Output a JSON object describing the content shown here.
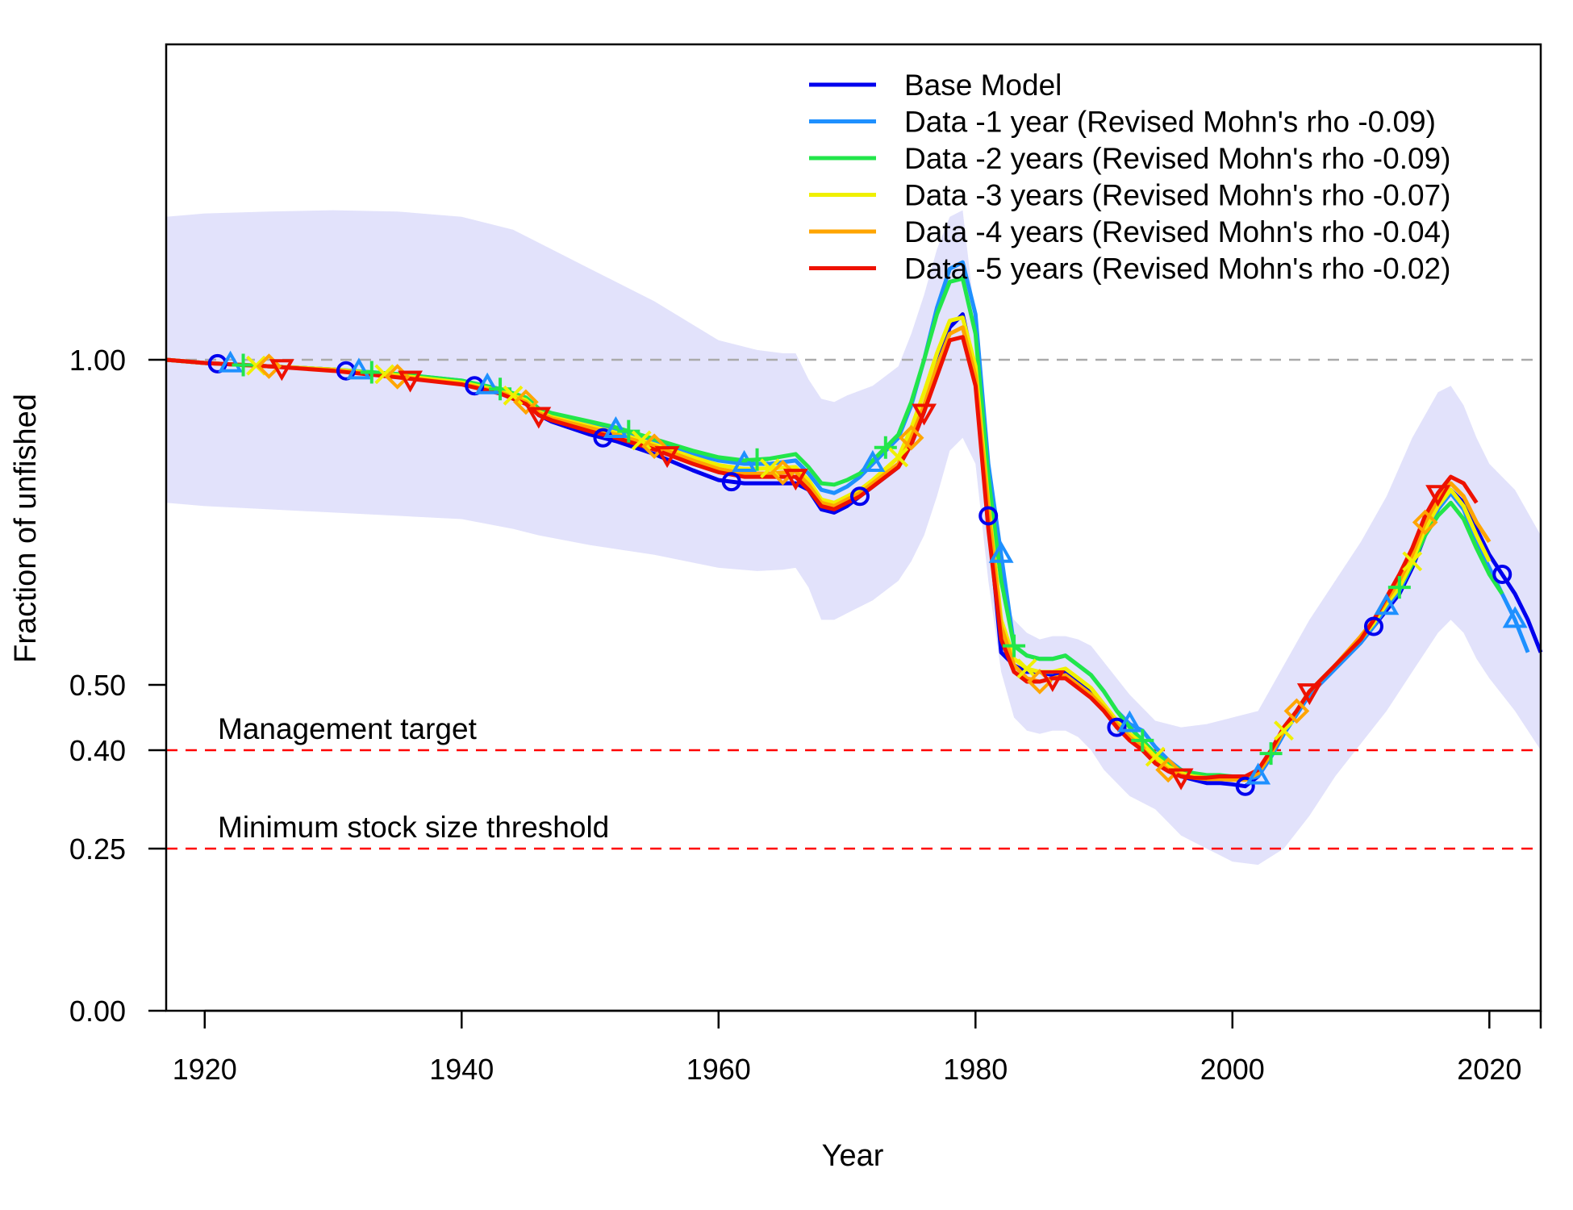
{
  "chart_data": {
    "type": "line",
    "xlabel": "Year",
    "ylabel": "Fraction of unfished",
    "xlim": [
      1917,
      2024
    ],
    "ylim": [
      0,
      1.55
    ],
    "x_ticks": [
      1920,
      1940,
      1960,
      1980,
      2000,
      2020
    ],
    "x_tick_labels": [
      "1920",
      "1940",
      "1960",
      "1980",
      "2000",
      "2020"
    ],
    "y_ticks": [
      0,
      0.25,
      0.4,
      0.5,
      1.0
    ],
    "y_tick_labels": [
      "0.00",
      "0.25",
      "0.40",
      "0.50",
      "1.00"
    ],
    "grid": false,
    "legend_position": "top-right",
    "reference_lines": [
      {
        "y": 1.0,
        "color": "#aaaaaa",
        "style": "dashed",
        "label": ""
      },
      {
        "y": 0.4,
        "color": "#ff0000",
        "style": "dashed",
        "label": "Management target"
      },
      {
        "y": 0.25,
        "color": "#ff0000",
        "style": "dashed",
        "label": "Minimum stock size threshold"
      }
    ],
    "uncertainty_band": {
      "color": "#e2e2fb",
      "x": [
        1917,
        1920,
        1925,
        1930,
        1935,
        1940,
        1944,
        1946,
        1950,
        1955,
        1960,
        1963,
        1965,
        1966,
        1967,
        1968,
        1969,
        1970,
        1972,
        1974,
        1975,
        1976,
        1977,
        1978,
        1979,
        1980,
        1981,
        1982,
        1983,
        1984,
        1985,
        1986,
        1987,
        1988,
        1989,
        1990,
        1992,
        1994,
        1996,
        1998,
        2000,
        2002,
        2004,
        2006,
        2008,
        2010,
        2012,
        2014,
        2016,
        2017,
        2018,
        2019,
        2020,
        2022,
        2024
      ],
      "upper": [
        1.22,
        1.225,
        1.228,
        1.23,
        1.228,
        1.22,
        1.2,
        1.18,
        1.14,
        1.09,
        1.03,
        1.015,
        1.01,
        1.01,
        0.97,
        0.94,
        0.935,
        0.945,
        0.96,
        0.99,
        1.04,
        1.1,
        1.17,
        1.22,
        1.23,
        1.06,
        0.78,
        0.64,
        0.6,
        0.58,
        0.57,
        0.575,
        0.575,
        0.57,
        0.56,
        0.535,
        0.485,
        0.445,
        0.435,
        0.44,
        0.45,
        0.46,
        0.53,
        0.6,
        0.66,
        0.72,
        0.79,
        0.88,
        0.95,
        0.96,
        0.93,
        0.88,
        0.84,
        0.8,
        0.73
      ],
      "lower": [
        0.78,
        0.775,
        0.77,
        0.765,
        0.76,
        0.755,
        0.74,
        0.73,
        0.715,
        0.7,
        0.68,
        0.675,
        0.677,
        0.68,
        0.65,
        0.6,
        0.6,
        0.61,
        0.63,
        0.66,
        0.69,
        0.73,
        0.79,
        0.86,
        0.88,
        0.84,
        0.66,
        0.52,
        0.45,
        0.43,
        0.425,
        0.43,
        0.43,
        0.42,
        0.4,
        0.37,
        0.33,
        0.31,
        0.27,
        0.25,
        0.23,
        0.225,
        0.25,
        0.3,
        0.36,
        0.41,
        0.46,
        0.52,
        0.58,
        0.6,
        0.58,
        0.54,
        0.51,
        0.46,
        0.4
      ]
    },
    "series": [
      {
        "name": "Base Model",
        "color": "#0000ee",
        "marker": "circle",
        "marker_years": [
          1921,
          1931,
          1941,
          1951,
          1961,
          1971,
          1981,
          1991,
          2001,
          2011,
          2021
        ],
        "x": [
          1917,
          1920,
          1925,
          1930,
          1935,
          1940,
          1943,
          1945,
          1946,
          1947,
          1950,
          1952,
          1955,
          1958,
          1960,
          1962,
          1964,
          1966,
          1967,
          1968,
          1969,
          1970,
          1971,
          1972,
          1974,
          1975,
          1976,
          1977,
          1978,
          1979,
          1980,
          1981,
          1982,
          1983,
          1984,
          1985,
          1986,
          1987,
          1988,
          1989,
          1990,
          1991,
          1992,
          1993,
          1994,
          1995,
          1996,
          1997,
          1998,
          1999,
          2000,
          2001,
          2002,
          2003,
          2004,
          2005,
          2006,
          2007,
          2008,
          2010,
          2011,
          2012,
          2013,
          2014,
          2015,
          2016,
          2017,
          2018,
          2019,
          2020,
          2021,
          2022,
          2023,
          2024
        ],
        "y": [
          1.0,
          0.995,
          0.99,
          0.985,
          0.975,
          0.965,
          0.95,
          0.935,
          0.915,
          0.905,
          0.885,
          0.875,
          0.855,
          0.83,
          0.815,
          0.81,
          0.81,
          0.81,
          0.8,
          0.77,
          0.765,
          0.775,
          0.79,
          0.805,
          0.835,
          0.87,
          0.92,
          0.99,
          1.05,
          1.07,
          0.98,
          0.76,
          0.55,
          0.53,
          0.52,
          0.52,
          0.515,
          0.52,
          0.505,
          0.49,
          0.465,
          0.435,
          0.42,
          0.41,
          0.39,
          0.375,
          0.36,
          0.355,
          0.35,
          0.35,
          0.348,
          0.345,
          0.36,
          0.39,
          0.425,
          0.455,
          0.485,
          0.505,
          0.525,
          0.565,
          0.59,
          0.615,
          0.64,
          0.68,
          0.73,
          0.77,
          0.8,
          0.78,
          0.74,
          0.7,
          0.67,
          0.64,
          0.6,
          0.55
        ]
      },
      {
        "name": "Data -1 year (Revised Mohn's rho -0.09)",
        "color": "#1e90ff",
        "marker": "triangle-up",
        "marker_years": [
          1922,
          1932,
          1942,
          1952,
          1962,
          1972,
          1982,
          1992,
          2002,
          2012,
          2022
        ],
        "x": [
          1917,
          1920,
          1925,
          1930,
          1935,
          1940,
          1943,
          1945,
          1946,
          1947,
          1950,
          1952,
          1955,
          1958,
          1960,
          1962,
          1964,
          1966,
          1967,
          1968,
          1969,
          1970,
          1971,
          1972,
          1974,
          1975,
          1976,
          1977,
          1978,
          1979,
          1980,
          1981,
          1982,
          1983,
          1984,
          1985,
          1986,
          1987,
          1988,
          1989,
          1990,
          1991,
          1992,
          1993,
          1994,
          1995,
          1996,
          1997,
          1998,
          1999,
          2000,
          2001,
          2002,
          2003,
          2004,
          2005,
          2006,
          2007,
          2008,
          2010,
          2011,
          2012,
          2013,
          2014,
          2015,
          2016,
          2017,
          2018,
          2019,
          2020,
          2021,
          2022,
          2023
        ],
        "y": [
          1.0,
          0.995,
          0.99,
          0.985,
          0.978,
          0.968,
          0.955,
          0.94,
          0.923,
          0.915,
          0.9,
          0.892,
          0.873,
          0.855,
          0.845,
          0.84,
          0.84,
          0.845,
          0.825,
          0.8,
          0.795,
          0.805,
          0.82,
          0.84,
          0.88,
          0.93,
          1.0,
          1.08,
          1.14,
          1.15,
          1.07,
          0.84,
          0.7,
          0.56,
          0.545,
          0.54,
          0.54,
          0.545,
          0.53,
          0.515,
          0.49,
          0.46,
          0.44,
          0.43,
          0.405,
          0.385,
          0.37,
          0.365,
          0.36,
          0.36,
          0.358,
          0.355,
          0.36,
          0.39,
          0.425,
          0.455,
          0.485,
          0.505,
          0.525,
          0.565,
          0.59,
          0.62,
          0.645,
          0.685,
          0.735,
          0.77,
          0.795,
          0.77,
          0.72,
          0.68,
          0.64,
          0.6,
          0.55
        ]
      },
      {
        "name": "Data -2 years (Revised Mohn's rho -0.09)",
        "color": "#22e64a",
        "marker": "plus",
        "marker_years": [
          1923,
          1933,
          1943,
          1953,
          1963,
          1973,
          1983,
          1993,
          2003,
          2013
        ],
        "x": [
          1917,
          1920,
          1925,
          1930,
          1935,
          1940,
          1943,
          1945,
          1946,
          1947,
          1950,
          1952,
          1955,
          1958,
          1960,
          1962,
          1964,
          1966,
          1967,
          1968,
          1969,
          1970,
          1971,
          1972,
          1974,
          1975,
          1976,
          1977,
          1978,
          1979,
          1980,
          1981,
          1982,
          1983,
          1984,
          1985,
          1986,
          1987,
          1988,
          1989,
          1990,
          1991,
          1992,
          1993,
          1994,
          1995,
          1996,
          1997,
          1998,
          1999,
          2000,
          2001,
          2002,
          2003,
          2004,
          2005,
          2006,
          2007,
          2008,
          2010,
          2011,
          2012,
          2013,
          2014,
          2015,
          2016,
          2017,
          2018,
          2019,
          2020,
          2021
        ],
        "y": [
          1.0,
          0.995,
          0.99,
          0.985,
          0.978,
          0.968,
          0.955,
          0.942,
          0.925,
          0.918,
          0.905,
          0.896,
          0.878,
          0.86,
          0.85,
          0.845,
          0.848,
          0.855,
          0.835,
          0.81,
          0.808,
          0.815,
          0.825,
          0.845,
          0.885,
          0.935,
          1.0,
          1.07,
          1.12,
          1.125,
          1.04,
          0.82,
          0.66,
          0.56,
          0.545,
          0.54,
          0.54,
          0.545,
          0.53,
          0.515,
          0.49,
          0.46,
          0.435,
          0.415,
          0.395,
          0.38,
          0.37,
          0.365,
          0.362,
          0.362,
          0.36,
          0.358,
          0.365,
          0.395,
          0.43,
          0.46,
          0.49,
          0.51,
          0.53,
          0.57,
          0.595,
          0.625,
          0.65,
          0.685,
          0.73,
          0.76,
          0.78,
          0.755,
          0.71,
          0.67,
          0.64
        ]
      },
      {
        "name": "Data -3 years (Revised Mohn's rho -0.07)",
        "color": "#f0f000",
        "marker": "cross",
        "marker_years": [
          1924,
          1934,
          1944,
          1954,
          1964,
          1974,
          1984,
          1994,
          2004,
          2014
        ],
        "x": [
          1917,
          1920,
          1925,
          1930,
          1935,
          1940,
          1943,
          1945,
          1946,
          1947,
          1950,
          1952,
          1955,
          1958,
          1960,
          1962,
          1964,
          1966,
          1967,
          1968,
          1969,
          1970,
          1971,
          1972,
          1974,
          1975,
          1976,
          1977,
          1978,
          1979,
          1980,
          1981,
          1982,
          1983,
          1984,
          1985,
          1986,
          1987,
          1988,
          1989,
          1990,
          1991,
          1992,
          1993,
          1994,
          1995,
          1996,
          1997,
          1998,
          1999,
          2000,
          2001,
          2002,
          2003,
          2004,
          2005,
          2006,
          2007,
          2008,
          2010,
          2011,
          2012,
          2013,
          2014,
          2015,
          2016,
          2017,
          2018,
          2019,
          2020
        ],
        "y": [
          1.0,
          0.995,
          0.99,
          0.985,
          0.976,
          0.965,
          0.952,
          0.938,
          0.92,
          0.912,
          0.898,
          0.888,
          0.87,
          0.85,
          0.838,
          0.832,
          0.833,
          0.835,
          0.815,
          0.785,
          0.78,
          0.79,
          0.8,
          0.815,
          0.85,
          0.895,
          0.95,
          1.01,
          1.06,
          1.065,
          0.99,
          0.78,
          0.6,
          0.54,
          0.525,
          0.52,
          0.52,
          0.525,
          0.51,
          0.495,
          0.47,
          0.445,
          0.425,
          0.41,
          0.39,
          0.375,
          0.365,
          0.36,
          0.358,
          0.358,
          0.357,
          0.355,
          0.365,
          0.395,
          0.43,
          0.46,
          0.49,
          0.51,
          0.53,
          0.57,
          0.595,
          0.625,
          0.65,
          0.69,
          0.74,
          0.775,
          0.8,
          0.775,
          0.73,
          0.69
        ]
      },
      {
        "name": "Data -4 years (Revised Mohn's rho -0.04)",
        "color": "#ffa500",
        "marker": "diamond",
        "marker_years": [
          1925,
          1935,
          1945,
          1955,
          1965,
          1975,
          1985,
          1995,
          2005,
          2015
        ],
        "x": [
          1917,
          1920,
          1925,
          1930,
          1935,
          1940,
          1943,
          1945,
          1946,
          1947,
          1950,
          1952,
          1955,
          1958,
          1960,
          1962,
          1964,
          1966,
          1967,
          1968,
          1969,
          1970,
          1971,
          1972,
          1974,
          1975,
          1976,
          1977,
          1978,
          1979,
          1980,
          1981,
          1982,
          1983,
          1984,
          1985,
          1986,
          1987,
          1988,
          1989,
          1990,
          1991,
          1992,
          1993,
          1994,
          1995,
          1996,
          1997,
          1998,
          1999,
          2000,
          2001,
          2002,
          2003,
          2004,
          2005,
          2006,
          2007,
          2008,
          2010,
          2011,
          2012,
          2013,
          2014,
          2015,
          2016,
          2017,
          2018,
          2019,
          2020
        ],
        "y": [
          1.0,
          0.995,
          0.99,
          0.984,
          0.974,
          0.963,
          0.95,
          0.935,
          0.918,
          0.91,
          0.895,
          0.885,
          0.867,
          0.845,
          0.832,
          0.825,
          0.825,
          0.828,
          0.808,
          0.78,
          0.775,
          0.785,
          0.795,
          0.81,
          0.84,
          0.88,
          0.93,
          0.99,
          1.04,
          1.05,
          0.975,
          0.77,
          0.59,
          0.53,
          0.51,
          0.505,
          0.51,
          0.515,
          0.5,
          0.485,
          0.465,
          0.44,
          0.42,
          0.405,
          0.385,
          0.37,
          0.362,
          0.358,
          0.356,
          0.356,
          0.355,
          0.355,
          0.365,
          0.395,
          0.43,
          0.46,
          0.49,
          0.51,
          0.53,
          0.575,
          0.6,
          0.63,
          0.66,
          0.7,
          0.75,
          0.785,
          0.81,
          0.79,
          0.75,
          0.72
        ]
      },
      {
        "name": "Data -5 years (Revised Mohn's rho -0.02)",
        "color": "#ee1100",
        "marker": "triangle-down",
        "marker_years": [
          1926,
          1936,
          1946,
          1956,
          1966,
          1976,
          1986,
          1996,
          2006,
          2016
        ],
        "x": [
          1917,
          1920,
          1925,
          1930,
          1935,
          1940,
          1943,
          1945,
          1946,
          1947,
          1950,
          1952,
          1955,
          1958,
          1960,
          1962,
          1964,
          1966,
          1967,
          1968,
          1969,
          1970,
          1971,
          1972,
          1974,
          1975,
          1976,
          1977,
          1978,
          1979,
          1980,
          1981,
          1982,
          1983,
          1984,
          1985,
          1986,
          1987,
          1988,
          1989,
          1990,
          1991,
          1992,
          1993,
          1994,
          1995,
          1996,
          1997,
          1998,
          1999,
          2000,
          2001,
          2002,
          2003,
          2004,
          2005,
          2006,
          2007,
          2008,
          2010,
          2011,
          2012,
          2013,
          2014,
          2015,
          2016,
          2017,
          2018,
          2019
        ],
        "y": [
          1.0,
          0.995,
          0.99,
          0.983,
          0.973,
          0.962,
          0.948,
          0.932,
          0.915,
          0.907,
          0.89,
          0.88,
          0.862,
          0.84,
          0.827,
          0.82,
          0.82,
          0.82,
          0.8,
          0.775,
          0.77,
          0.78,
          0.79,
          0.805,
          0.835,
          0.87,
          0.92,
          0.975,
          1.03,
          1.035,
          0.96,
          0.74,
          0.57,
          0.52,
          0.505,
          0.505,
          0.51,
          0.51,
          0.495,
          0.48,
          0.46,
          0.435,
          0.415,
          0.4,
          0.38,
          0.368,
          0.36,
          0.358,
          0.358,
          0.36,
          0.36,
          0.36,
          0.37,
          0.4,
          0.435,
          0.46,
          0.49,
          0.51,
          0.53,
          0.57,
          0.6,
          0.635,
          0.67,
          0.71,
          0.76,
          0.795,
          0.82,
          0.81,
          0.78
        ]
      }
    ]
  }
}
